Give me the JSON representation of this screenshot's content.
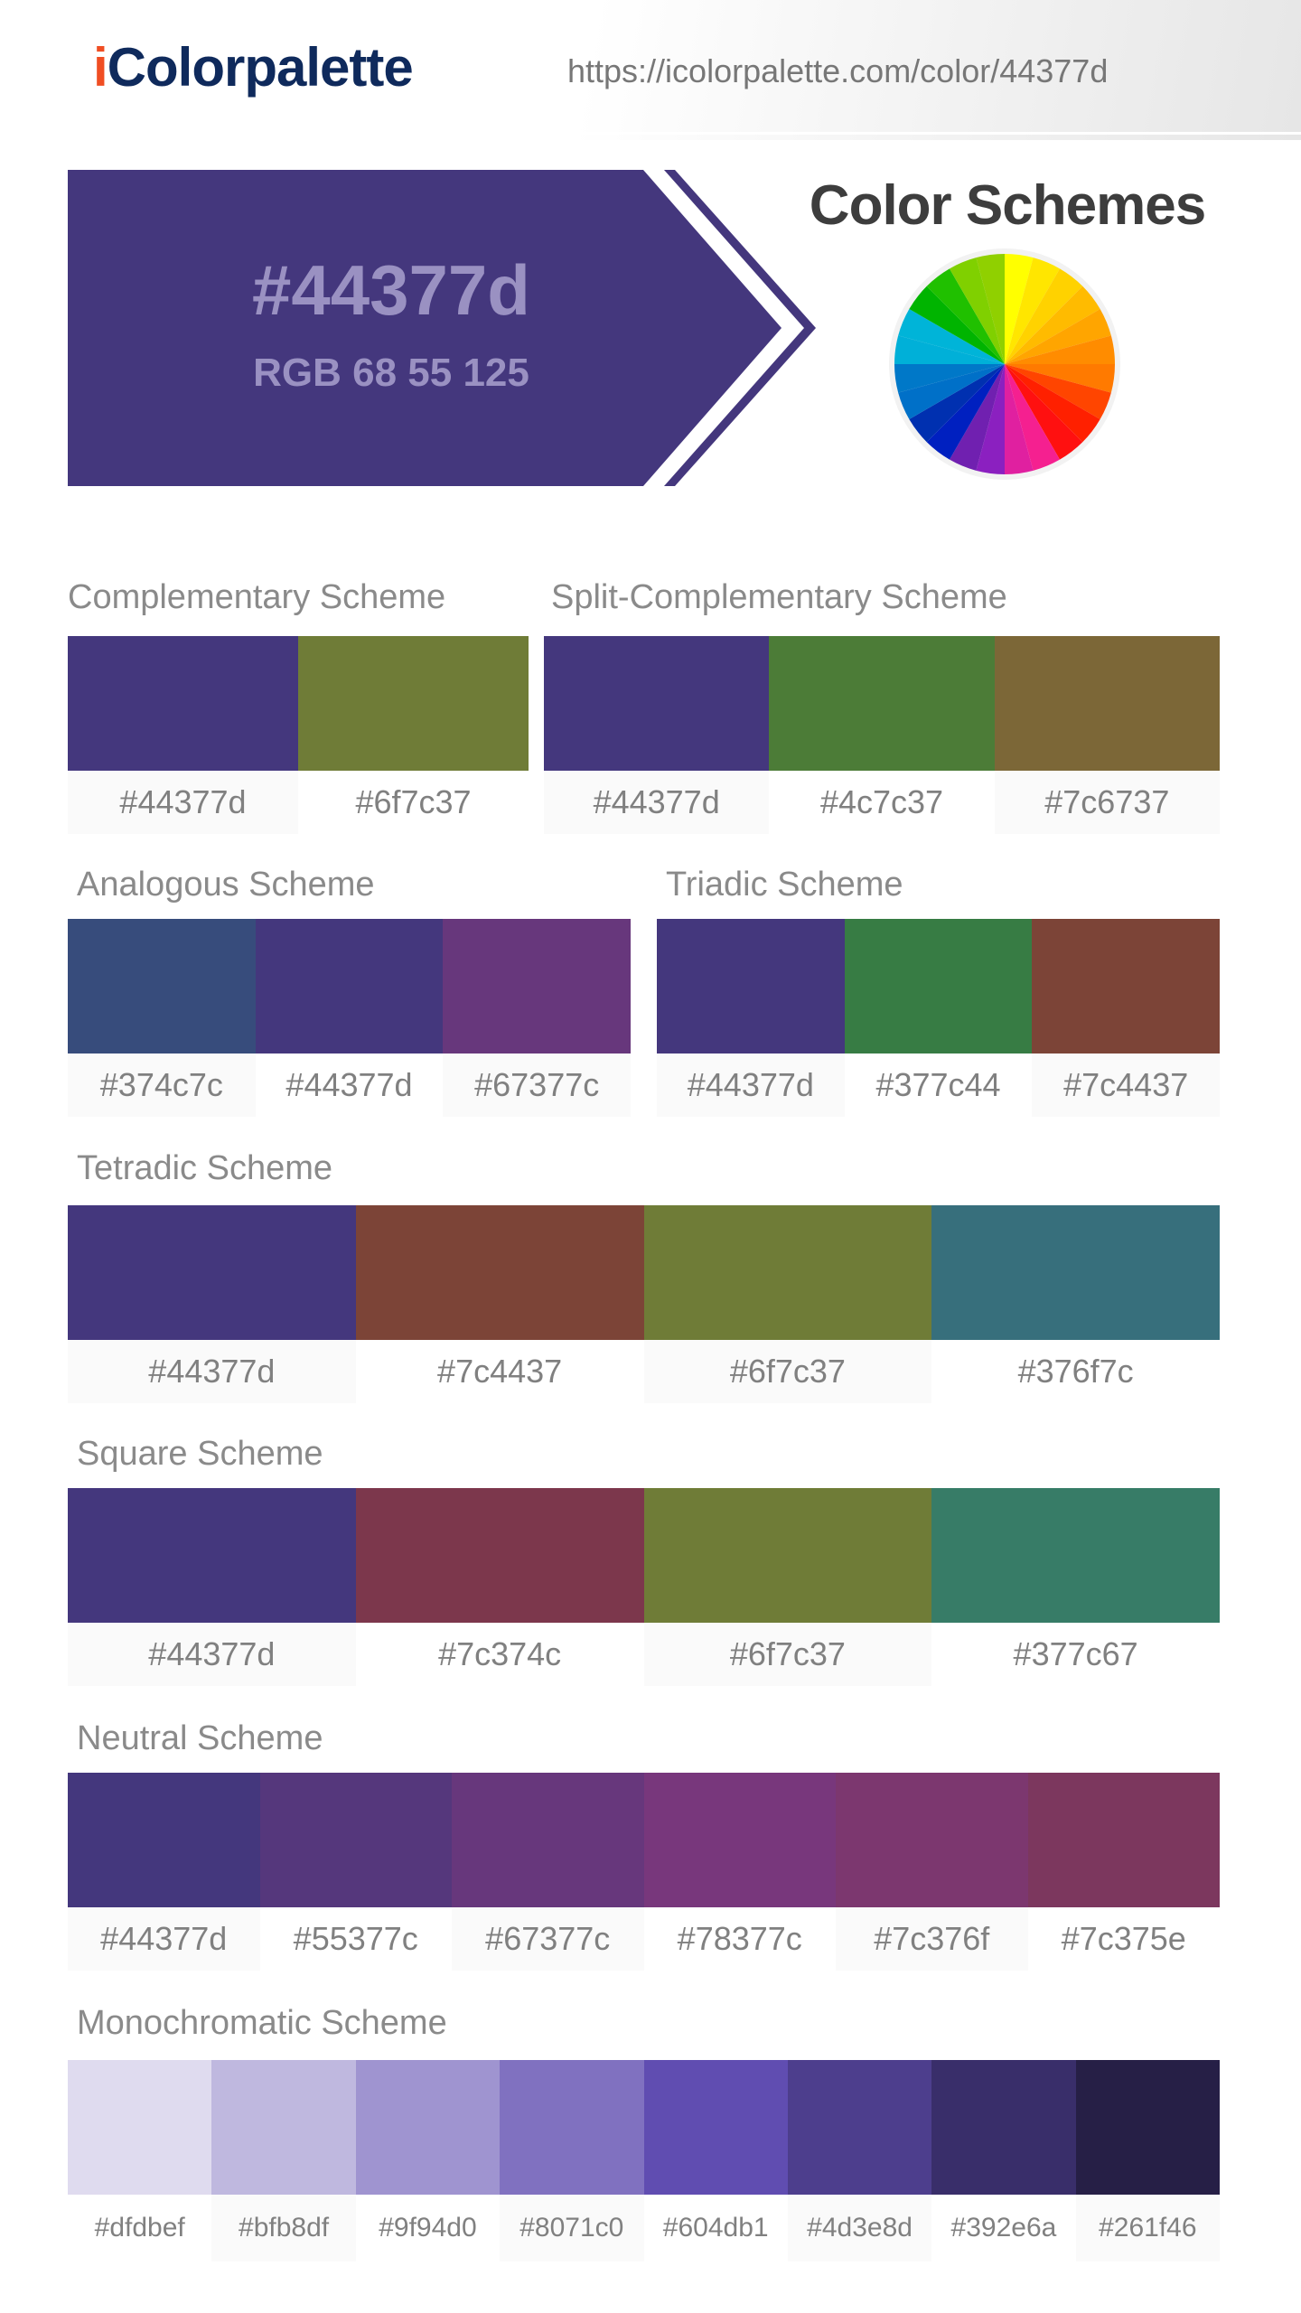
{
  "header": {
    "logo_i": "i",
    "logo_rest": "Colorpalette",
    "url": "https://icolorpalette.com/color/44377d"
  },
  "hero": {
    "hex": "#44377d",
    "rgb": "RGB 68 55 125",
    "color": "#44377d",
    "schemes_title": "Color Schemes",
    "icon": "color-wheel-icon"
  },
  "schemes": [
    {
      "title": "Complementary Scheme",
      "colors": [
        "#44377d",
        "#6f7c37"
      ]
    },
    {
      "title": "Split-Complementary Scheme",
      "colors": [
        "#44377d",
        "#4c7c37",
        "#7c6737"
      ]
    },
    {
      "title": "Analogous Scheme",
      "colors": [
        "#374c7c",
        "#44377d",
        "#67377c"
      ]
    },
    {
      "title": "Triadic Scheme",
      "colors": [
        "#44377d",
        "#377c44",
        "#7c4437"
      ]
    },
    {
      "title": "Tetradic Scheme",
      "colors": [
        "#44377d",
        "#7c4437",
        "#6f7c37",
        "#376f7c"
      ]
    },
    {
      "title": "Square Scheme",
      "colors": [
        "#44377d",
        "#7c374c",
        "#6f7c37",
        "#377c67"
      ]
    },
    {
      "title": "Neutral Scheme",
      "colors": [
        "#44377d",
        "#55377c",
        "#67377c",
        "#78377c",
        "#7c376f",
        "#7c375e"
      ]
    },
    {
      "title": "Monochromatic Scheme",
      "colors": [
        "#dfdbef",
        "#bfb8df",
        "#9f94d0",
        "#8071c0",
        "#604db1",
        "#4d3e8d",
        "#392e6a",
        "#261f46"
      ]
    }
  ]
}
